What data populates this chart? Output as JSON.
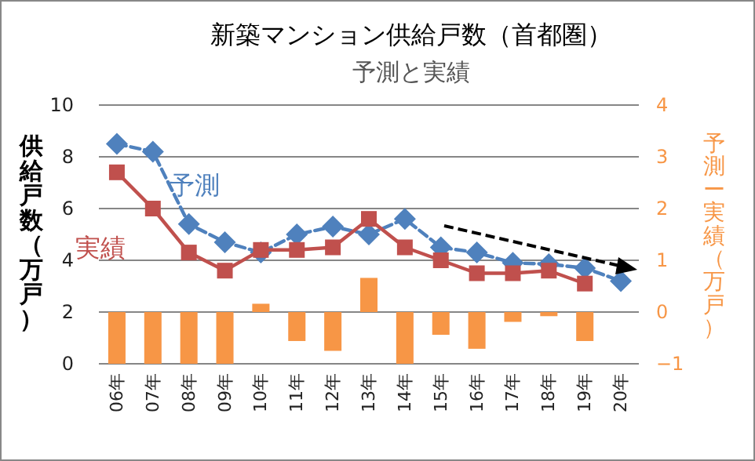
{
  "chart_data": {
    "type": "line",
    "title": "新築マンション供給戸数（首都圏）",
    "subtitle": "予測と実績",
    "ylabel": "供給戸数（万戸）",
    "y2label": "予測ー実績（万戸）",
    "categories": [
      "06年",
      "07年",
      "08年",
      "09年",
      "10年",
      "11年",
      "12年",
      "13年",
      "14年",
      "15年",
      "16年",
      "17年",
      "18年",
      "19年",
      "20年"
    ],
    "ylim": [
      0,
      10
    ],
    "yticks": [
      0,
      2,
      4,
      6,
      8,
      10
    ],
    "y2lim": [
      -1,
      4
    ],
    "y2ticks": [
      -1,
      0,
      1,
      2,
      3,
      4
    ],
    "grid": "y",
    "legend": false,
    "series": [
      {
        "name": "予測",
        "color": "#4f81bd",
        "marker": "diamond",
        "line_style": "dashed",
        "values": [
          8.5,
          8.2,
          5.4,
          4.7,
          4.3,
          5.0,
          5.3,
          5.0,
          5.6,
          4.5,
          4.3,
          3.9,
          3.85,
          3.7,
          3.2
        ]
      },
      {
        "name": "実績",
        "color": "#c0504d",
        "marker": "square",
        "line_style": "solid",
        "values": [
          7.4,
          6.0,
          4.3,
          3.6,
          4.4,
          4.4,
          4.5,
          5.6,
          4.5,
          4.0,
          3.5,
          3.5,
          3.6,
          3.1,
          null
        ]
      },
      {
        "type": "bar",
        "axis": "y2",
        "color": "#f79646",
        "values": [
          -1.0,
          -1.0,
          -1.0,
          -1.0,
          0.16,
          -0.56,
          -0.75,
          0.66,
          -1.0,
          -0.44,
          -0.71,
          -0.19,
          -0.08,
          -0.56,
          null
        ]
      }
    ]
  }
}
